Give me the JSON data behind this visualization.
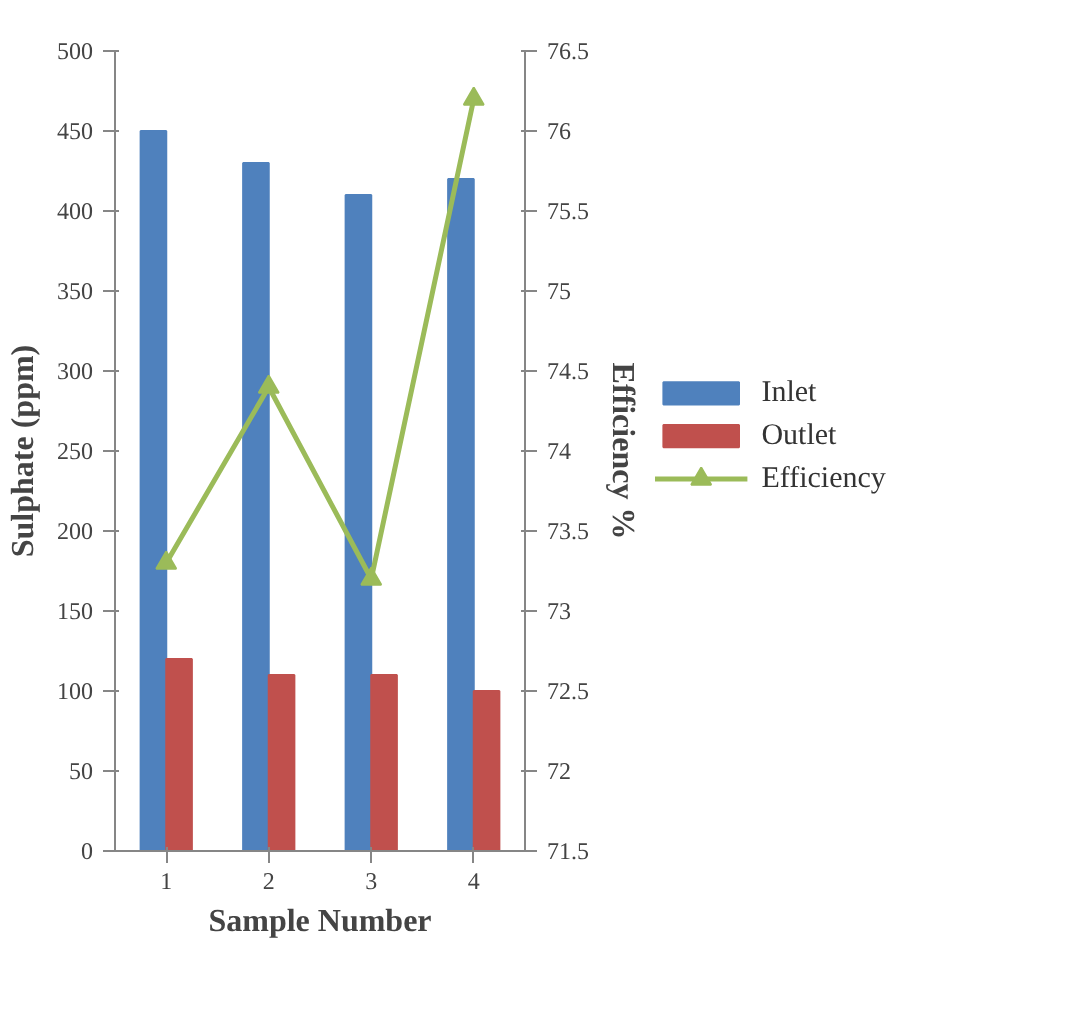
{
  "chart_data": {
    "type": "bar",
    "xlabel": "Sample Number",
    "ylabel": "Sulphate (ppm)",
    "y2label": "Efficiency %",
    "categories": [
      "1",
      "2",
      "3",
      "4"
    ],
    "series": [
      {
        "name": "Inlet",
        "color": "#4f81bd",
        "values": [
          450,
          430,
          410,
          420
        ]
      },
      {
        "name": "Outlet",
        "color": "#c0504d",
        "values": [
          120,
          110,
          110,
          100
        ]
      },
      {
        "name": "Efficiency",
        "color": "#9bbb59",
        "type": "line",
        "axis": "y2",
        "marker": "triangle",
        "values": [
          73.3,
          74.4,
          73.2,
          76.2
        ]
      }
    ],
    "ylim": [
      0,
      500
    ],
    "yticks": [
      0,
      50,
      100,
      150,
      200,
      250,
      300,
      350,
      400,
      450,
      500
    ],
    "y2lim": [
      71.5,
      76.5
    ],
    "y2ticks": [
      71.5,
      72,
      72.5,
      73,
      73.5,
      74,
      74.5,
      75,
      75.5,
      76,
      76.5
    ],
    "grid": false,
    "legend": "right"
  }
}
